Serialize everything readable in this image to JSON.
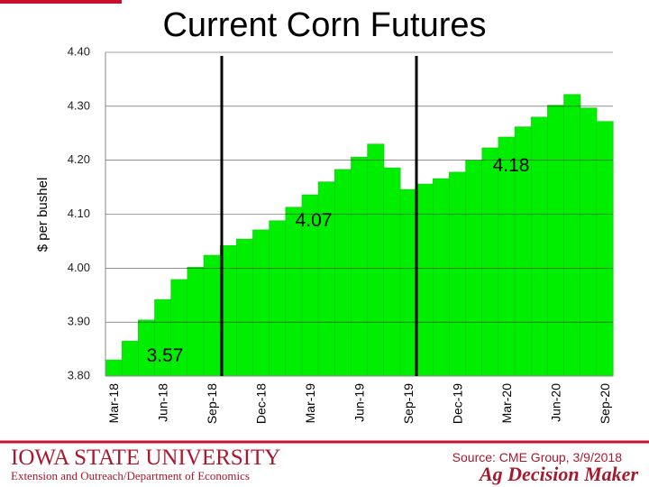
{
  "chart_data": {
    "type": "bar",
    "title": "Current Corn Futures",
    "y_label": "$ per bushel",
    "categories": [
      "Mar-18",
      null,
      null,
      "Jun-18",
      null,
      null,
      "Sep-18",
      null,
      null,
      "Dec-18",
      null,
      null,
      "Mar-19",
      null,
      null,
      "Jun-19",
      null,
      null,
      "Sep-19",
      null,
      null,
      "Dec-19",
      null,
      null,
      "Mar-20",
      null,
      null,
      "Jun-20",
      null,
      null,
      "Sep-20"
    ],
    "values": [
      3.83,
      3.865,
      3.904,
      3.942,
      3.979,
      4.002,
      4.024,
      4.042,
      4.054,
      4.071,
      4.088,
      4.113,
      4.136,
      4.16,
      4.183,
      4.206,
      4.23,
      4.186,
      4.146,
      4.156,
      4.166,
      4.178,
      4.2,
      4.223,
      4.243,
      4.262,
      4.28,
      4.302,
      4.322,
      4.297,
      4.272
    ],
    "color": "#00ee00",
    "ylim": [
      3.8,
      4.4
    ],
    "yticks": [
      {
        "value": 3.8,
        "label": "3.80"
      },
      {
        "value": 3.9,
        "label": "3.90"
      },
      {
        "value": 4.0,
        "label": "4.00"
      },
      {
        "value": 4.1,
        "label": "4.10"
      },
      {
        "value": 4.2,
        "label": "4.20"
      },
      {
        "value": 4.3,
        "label": "4.30"
      },
      {
        "value": 4.4,
        "label": "4.40"
      }
    ],
    "grid": true,
    "annotations": [
      "3.57",
      "4.07",
      "4.18"
    ]
  },
  "footer": {
    "university": "Iowa State University",
    "department": "Extension and Outreach/Department of Economics",
    "source": "Source: CME Group, 3/9/2018",
    "brand": "Ag Decision Maker"
  }
}
